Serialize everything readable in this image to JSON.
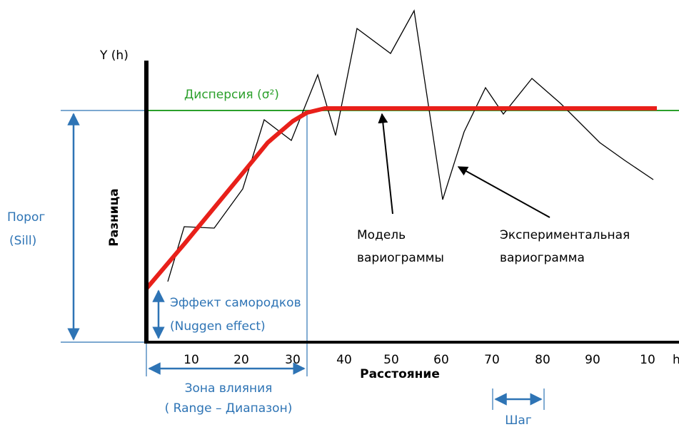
{
  "y_axis": {
    "title": "Y (h)",
    "label": "Разница"
  },
  "x_axis": {
    "label": "Расстояние",
    "unit": "h",
    "ticks": [
      "10",
      "20",
      "30",
      "40",
      "50",
      "60",
      "70",
      "80",
      "90",
      "10"
    ]
  },
  "sill_line": {
    "label": "Дисперсия (σ²)"
  },
  "sill": {
    "label": "Порог",
    "sublabel": "(Sill)"
  },
  "nugget": {
    "label": "Эффект самородков",
    "sublabel": "(Nuggen effect)"
  },
  "range": {
    "label": "Зона влияния",
    "sublabel": "( Range   – Диапазон)"
  },
  "model": {
    "label": "Модель",
    "sublabel": "вариограммы"
  },
  "experimental": {
    "label": "Экспериментальная",
    "sublabel": "вариограмма"
  },
  "step": {
    "label": "Шаг"
  }
}
